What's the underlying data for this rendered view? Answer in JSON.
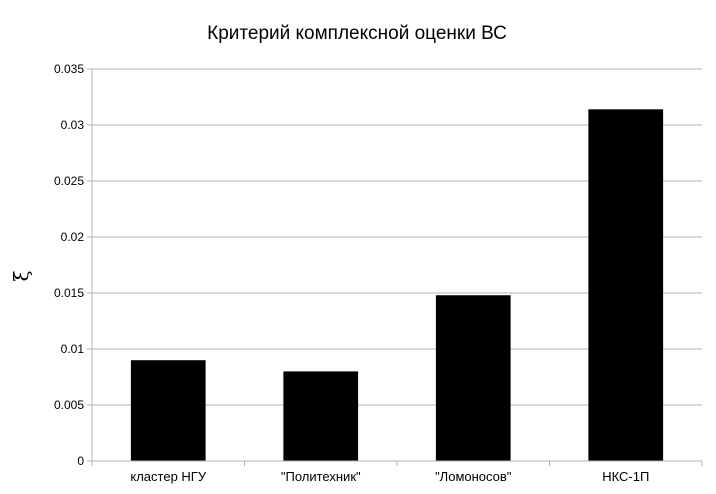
{
  "chart_data": {
    "type": "bar",
    "title": "Критерий комплексной оценки ВС",
    "xlabel": "",
    "ylabel": "ξ",
    "categories": [
      "кластер НГУ",
      "\"Политехник\"",
      "\"Ломоносов\"",
      "НКС-1П"
    ],
    "values": [
      0.009,
      0.008,
      0.0148,
      0.0314
    ],
    "ylim": [
      0,
      0.035
    ],
    "yticks": [
      "0",
      "0.005",
      "0.01",
      "0.015",
      "0.02",
      "0.025",
      "0.03",
      "0.035"
    ],
    "grid": true,
    "legend": "none",
    "bar_color": "#000000"
  }
}
